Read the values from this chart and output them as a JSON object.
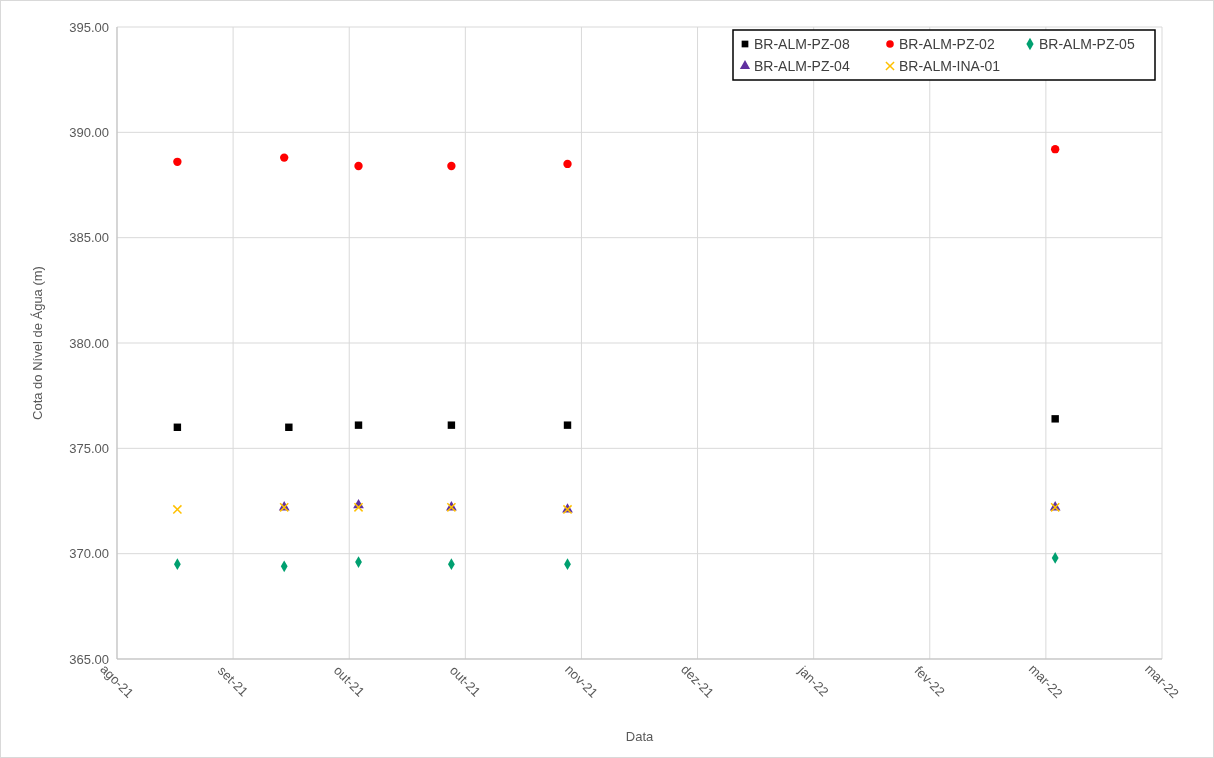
{
  "chart_data": {
    "type": "scatter",
    "xlabel": "Data",
    "ylabel": "Cota do Nível de Água (m)",
    "xlim": [
      "2021-08-15",
      "2022-03-28"
    ],
    "xticks": [
      {
        "value": "2021-08-15",
        "label": "ago-21"
      },
      {
        "value": "2021-09-09",
        "label": "set-21"
      },
      {
        "value": "2021-10-04",
        "label": "out-21"
      },
      {
        "value": "2021-10-29",
        "label": "out-21"
      },
      {
        "value": "2021-11-23",
        "label": "nov-21"
      },
      {
        "value": "2021-12-18",
        "label": "dez-21"
      },
      {
        "value": "2022-01-12",
        "label": "jan-22"
      },
      {
        "value": "2022-02-06",
        "label": "fev-22"
      },
      {
        "value": "2022-03-03",
        "label": "mar-22"
      },
      {
        "value": "2022-03-28",
        "label": "mar-22"
      }
    ],
    "ylim": [
      365,
      395
    ],
    "yticks": [
      {
        "value": 365,
        "label": "365.00"
      },
      {
        "value": 370,
        "label": "370.00"
      },
      {
        "value": 375,
        "label": "375.00"
      },
      {
        "value": 380,
        "label": "380.00"
      },
      {
        "value": 385,
        "label": "385.00"
      },
      {
        "value": 390,
        "label": "390.00"
      },
      {
        "value": 395,
        "label": "395.00"
      }
    ],
    "grid": true,
    "legend": "top right",
    "series": [
      {
        "name": "BR-ALM-PZ-08",
        "color": "#000000",
        "marker": "square",
        "x": [
          "2021-08-28",
          "2021-09-21",
          "2021-10-06",
          "2021-10-26",
          "2021-11-20",
          "2022-03-05"
        ],
        "values": [
          376.0,
          376.0,
          376.1,
          376.1,
          376.1,
          376.4
        ]
      },
      {
        "name": "BR-ALM-PZ-02",
        "color": "#ff0000",
        "marker": "circle",
        "x": [
          "2021-08-28",
          "2021-09-20",
          "2021-10-06",
          "2021-10-26",
          "2021-11-20",
          "2022-03-05"
        ],
        "values": [
          388.6,
          388.8,
          388.4,
          388.4,
          388.5,
          389.2
        ]
      },
      {
        "name": "BR-ALM-PZ-05",
        "color": "#00a070",
        "marker": "diamond",
        "x": [
          "2021-08-28",
          "2021-09-20",
          "2021-10-06",
          "2021-10-26",
          "2021-11-20",
          "2022-03-05"
        ],
        "values": [
          369.5,
          369.4,
          369.6,
          369.5,
          369.5,
          369.8
        ]
      },
      {
        "name": "BR-ALM-PZ-04",
        "color": "#6030a0",
        "marker": "triangle",
        "x": [
          "2021-09-20",
          "2021-10-06",
          "2021-10-26",
          "2021-11-20",
          "2022-03-05"
        ],
        "values": [
          372.2,
          372.3,
          372.2,
          372.1,
          372.2
        ]
      },
      {
        "name": "BR-ALM-INA-01",
        "color": "#ffc000",
        "marker": "cross",
        "x": [
          "2021-08-28",
          "2021-09-20",
          "2021-10-06",
          "2021-10-26",
          "2021-11-20",
          "2022-03-05"
        ],
        "values": [
          372.1,
          372.2,
          372.2,
          372.2,
          372.1,
          372.2
        ]
      }
    ]
  }
}
